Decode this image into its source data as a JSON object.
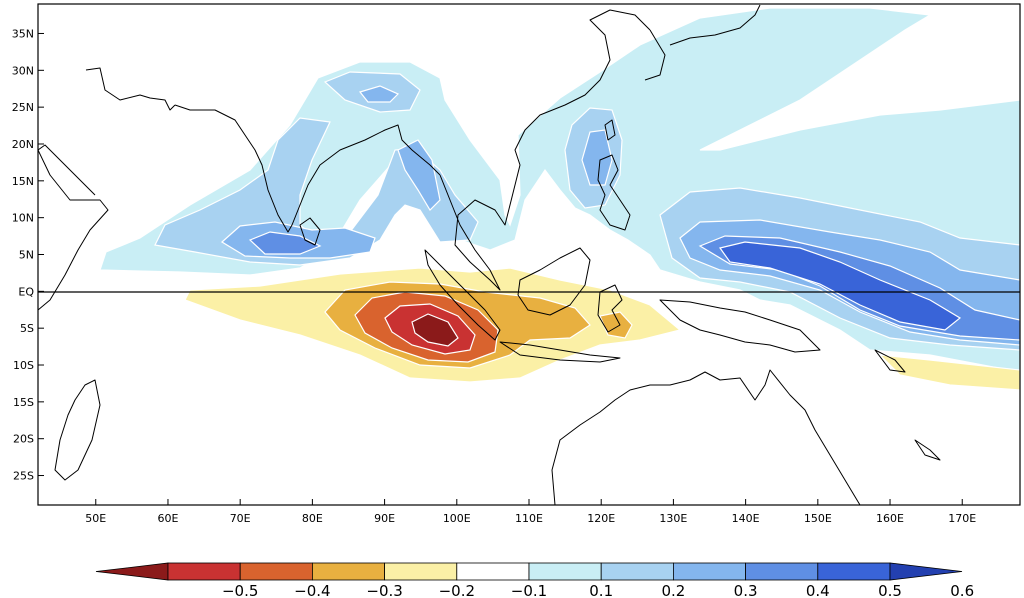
{
  "map": {
    "type": "contour-map",
    "x_axis": {
      "range": [
        42,
        178
      ],
      "ticks": [
        50,
        60,
        70,
        80,
        90,
        100,
        110,
        120,
        130,
        140,
        150,
        160,
        170
      ],
      "labels": [
        "50E",
        "60E",
        "70E",
        "80E",
        "90E",
        "100E",
        "110E",
        "120E",
        "130E",
        "140E",
        "150E",
        "160E",
        "170E"
      ]
    },
    "y_axis": {
      "range": [
        -29,
        39
      ],
      "ticks": [
        35,
        30,
        25,
        20,
        15,
        10,
        5,
        0,
        -5,
        -10,
        -15,
        -20,
        -25
      ],
      "labels": [
        "35N",
        "30N",
        "25N",
        "20N",
        "15N",
        "10N",
        "5N",
        "EQ",
        "5S",
        "10S",
        "15S",
        "20S",
        "25S"
      ]
    },
    "equator_line": true
  },
  "colorbar": {
    "labels": [
      "−0.5",
      "−0.4",
      "−0.3",
      "−0.2",
      "−0.1",
      "0.1",
      "0.2",
      "0.3",
      "0.4",
      "0.5",
      "0.6"
    ],
    "colors": [
      "#8b1a1a",
      "#c93232",
      "#d9632e",
      "#e8b040",
      "#fbf0a6",
      "#ffffff",
      "#c9eef5",
      "#a8d2f1",
      "#84b6ee",
      "#5f8fe4",
      "#3964d8",
      "#2340b0"
    ]
  },
  "colors": {
    "pos1": "#c9eef5",
    "pos2": "#a8d2f1",
    "pos3": "#84b6ee",
    "pos4": "#5f8fe4",
    "pos5": "#3964d8",
    "neg1": "#fbf0a6",
    "neg2": "#e8b040",
    "neg3": "#d9632e",
    "neg4": "#c93232",
    "neg5": "#8b1a1a"
  }
}
